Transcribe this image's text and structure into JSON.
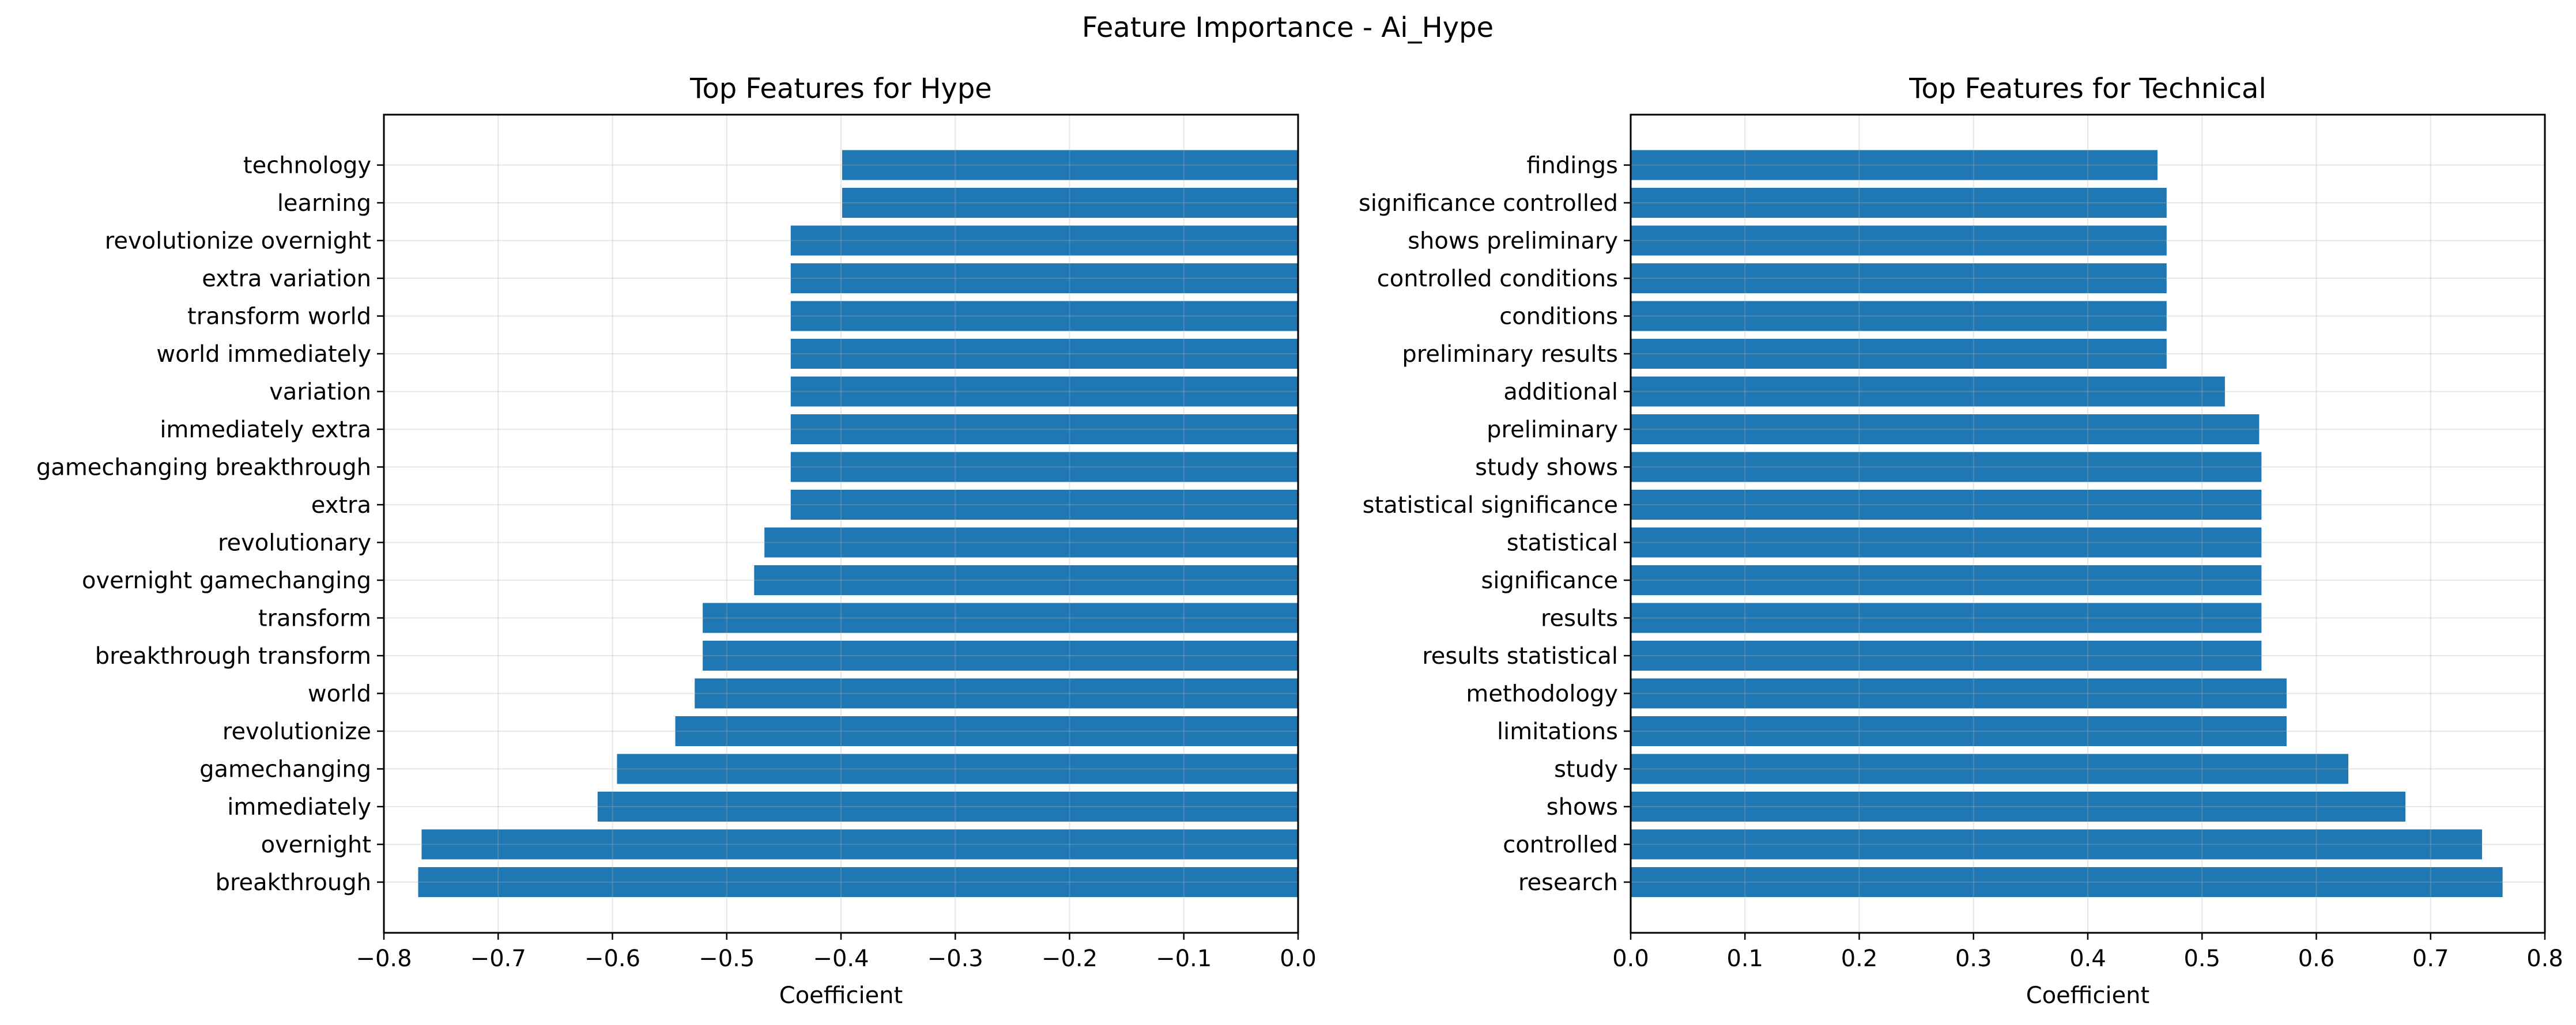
{
  "figure": {
    "title": "Feature Importance - Ai_Hype"
  },
  "chart_data": [
    {
      "type": "bar",
      "orientation": "horizontal",
      "title": "Top Features for Hype",
      "xlabel": "Coefficient",
      "ylabel": "",
      "xlim": [
        -0.8,
        0
      ],
      "xticks": [
        -0.8,
        -0.7,
        -0.6,
        -0.5,
        -0.4,
        -0.3,
        -0.2,
        -0.1,
        0.0
      ],
      "xtick_labels": [
        "−0.8",
        "−0.7",
        "−0.6",
        "−0.5",
        "−0.4",
        "−0.3",
        "−0.2",
        "−0.1",
        "0.0"
      ],
      "grid": true,
      "bar_color": "#1f77b4",
      "categories": [
        "breakthrough",
        "overnight",
        "immediately",
        "gamechanging",
        "revolutionize",
        "world",
        "breakthrough transform",
        "transform",
        "overnight gamechanging",
        "revolutionary",
        "extra",
        "gamechanging breakthrough",
        "immediately extra",
        "variation",
        "world immediately",
        "transform world",
        "extra variation",
        "revolutionize overnight",
        "learning",
        "technology"
      ],
      "values": [
        -0.77,
        -0.767,
        -0.613,
        -0.596,
        -0.545,
        -0.528,
        -0.521,
        -0.521,
        -0.476,
        -0.467,
        -0.444,
        -0.444,
        -0.444,
        -0.444,
        -0.444,
        -0.444,
        -0.444,
        -0.444,
        -0.399,
        -0.399
      ]
    },
    {
      "type": "bar",
      "orientation": "horizontal",
      "title": "Top Features for Technical",
      "xlabel": "Coefficient",
      "ylabel": "",
      "xlim": [
        0,
        0.8
      ],
      "xticks": [
        0.0,
        0.1,
        0.2,
        0.3,
        0.4,
        0.5,
        0.6,
        0.7,
        0.8
      ],
      "xtick_labels": [
        "0.0",
        "0.1",
        "0.2",
        "0.3",
        "0.4",
        "0.5",
        "0.6",
        "0.7",
        "0.8"
      ],
      "grid": true,
      "bar_color": "#1f77b4",
      "categories": [
        "research",
        "controlled",
        "shows",
        "study",
        "limitations",
        "methodology",
        "results statistical",
        "results",
        "significance",
        "statistical",
        "statistical significance",
        "study shows",
        "preliminary",
        "additional",
        "preliminary results",
        "conditions",
        "controlled conditions",
        "shows preliminary",
        "significance controlled",
        "findings"
      ],
      "values": [
        0.763,
        0.745,
        0.678,
        0.628,
        0.574,
        0.574,
        0.552,
        0.552,
        0.552,
        0.552,
        0.552,
        0.552,
        0.55,
        0.52,
        0.469,
        0.469,
        0.469,
        0.469,
        0.469,
        0.461
      ]
    }
  ]
}
